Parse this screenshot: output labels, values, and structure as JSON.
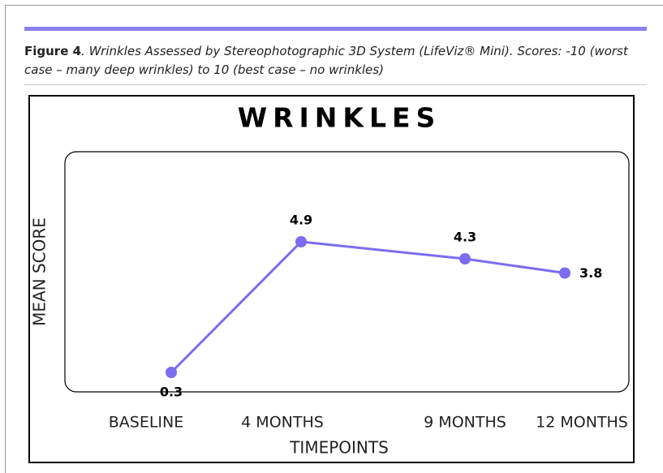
{
  "figure_label": "Figure 4",
  "caption": ". Wrinkles Assessed by Stereophotographic 3D System (LifeViz® Mini). Scores: -10 (worst case – many deep wrinkles) to 10 (best case – no wrinkles)",
  "chart_data": {
    "type": "line",
    "title": "WRINKLES",
    "y_label": "MEAN SCORE",
    "x_label": "TIMEPOINTS",
    "categories": [
      "BASELINE",
      "4 MONTHS",
      "9 MONTHS",
      "12 MONTHS"
    ],
    "values": [
      0.3,
      4.9,
      4.3,
      3.8
    ],
    "color": "#7b6cf0"
  }
}
